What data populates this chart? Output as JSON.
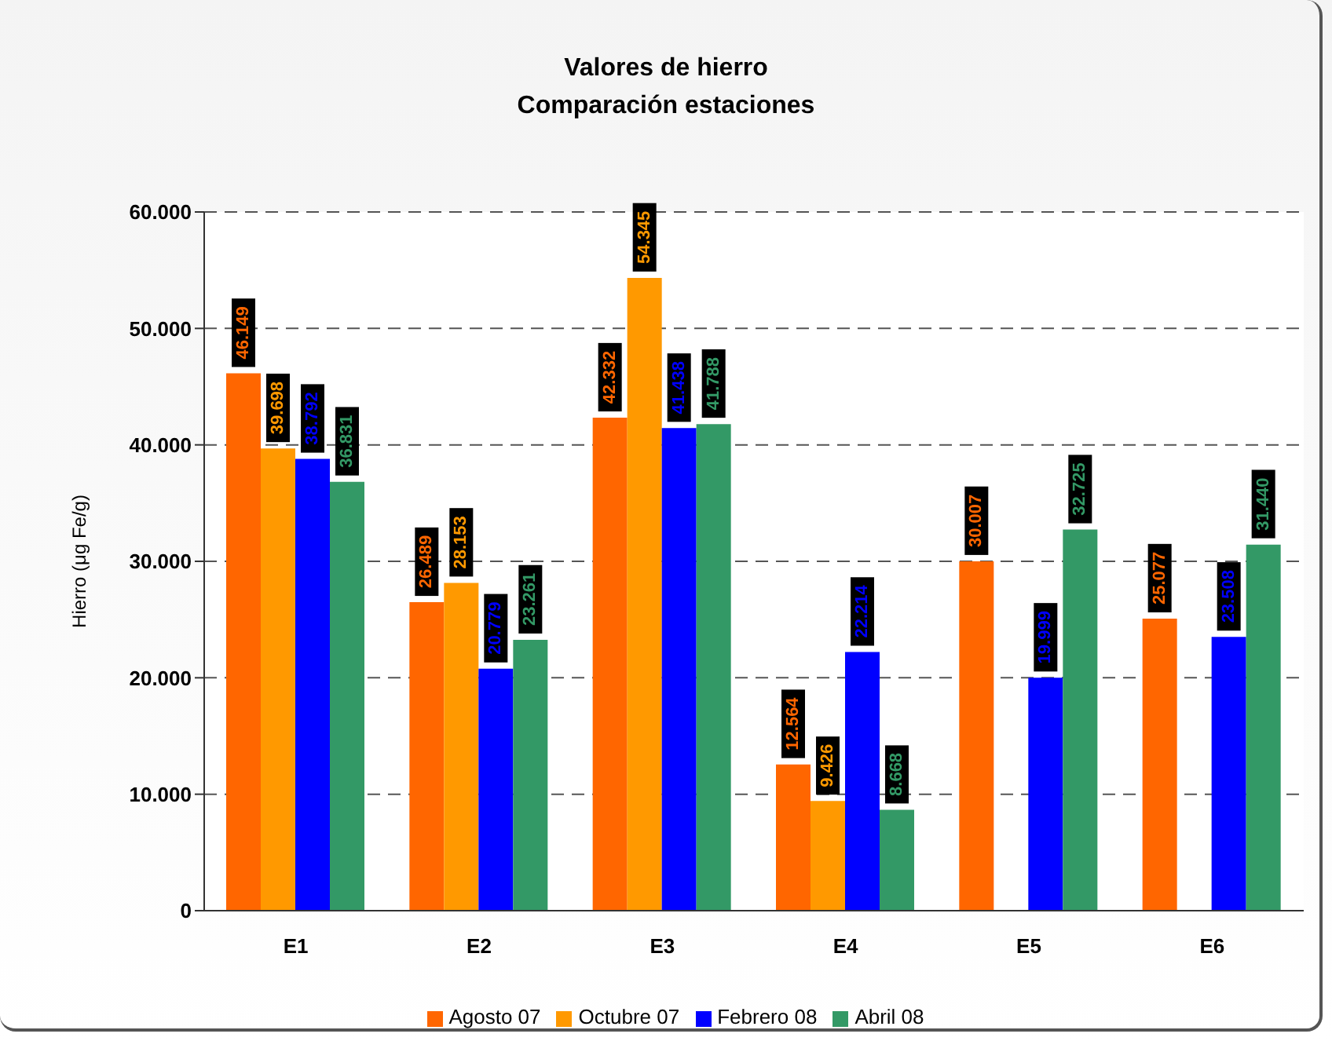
{
  "chart_data": {
    "type": "bar",
    "title": "Valores de hierro",
    "subtitle": "Comparación estaciones",
    "ylabel": "Hierro (μg Fe/g)",
    "categories": [
      "E1",
      "E2",
      "E3",
      "E4",
      "E5",
      "E6"
    ],
    "series": [
      {
        "name": "Agosto 07",
        "color": "#ff6600",
        "values": [
          46149,
          26489,
          42332,
          12564,
          30007,
          25077
        ],
        "value_labels": [
          "46.149",
          "26.489",
          "42.332",
          "12.564",
          "30.007",
          "25.077"
        ]
      },
      {
        "name": "Octubre 07",
        "color": "#ff9900",
        "values": [
          39698,
          28153,
          54345,
          9426,
          null,
          null
        ],
        "value_labels": [
          "39.698",
          "28.153",
          "54.345",
          "9.426",
          null,
          null
        ]
      },
      {
        "name": "Febrero 08",
        "color": "#0000ff",
        "values": [
          38792,
          20779,
          41438,
          22214,
          19999,
          23508
        ],
        "value_labels": [
          "38.792",
          "20.779",
          "41.438",
          "22.214",
          "19.999",
          "23.508"
        ]
      },
      {
        "name": "Abril 08",
        "color": "#339966",
        "values": [
          36831,
          23261,
          41788,
          8668,
          32725,
          31440
        ],
        "value_labels": [
          "36.831",
          "23.261",
          "41.788",
          "8.668",
          "32.725",
          "31.440"
        ]
      }
    ],
    "ylim": [
      0,
      60000
    ],
    "yticks": [
      0,
      {
        "value": 10000,
        "label": "10.000"
      },
      {
        "value": 20000,
        "label": "20.000"
      },
      {
        "value": 30000,
        "label": "30.000"
      },
      {
        "value": 40000,
        "label": "40.000"
      },
      {
        "value": 50000,
        "label": "50.000"
      },
      {
        "value": 60000,
        "label": "60.000"
      }
    ],
    "grid": "y",
    "legend": "bottom"
  }
}
